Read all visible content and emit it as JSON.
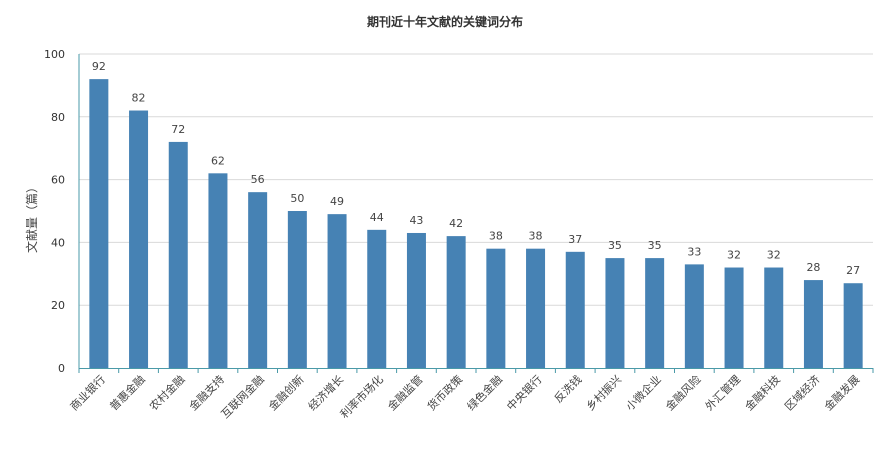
{
  "chart_data": {
    "type": "bar",
    "title": "期刊近十年文献的关键词分布",
    "xlabel": "",
    "ylabel": "文献量（篇）",
    "ylim": [
      0,
      100
    ],
    "yticks": [
      0,
      20,
      40,
      60,
      80,
      100
    ],
    "grid": true,
    "color": "#4682b4",
    "categories": [
      "商业银行",
      "普惠金融",
      "农村金融",
      "金融支持",
      "互联网金融",
      "金融创新",
      "经济增长",
      "利率市场化",
      "金融监管",
      "货币政策",
      "绿色金融",
      "中央银行",
      "反洗钱",
      "乡村振兴",
      "小微企业",
      "金融风险",
      "外汇管理",
      "金融科技",
      "区域经济",
      "金融发展"
    ],
    "values": [
      92,
      82,
      72,
      62,
      56,
      50,
      49,
      44,
      43,
      42,
      38,
      38,
      37,
      35,
      35,
      33,
      32,
      32,
      28,
      27
    ]
  }
}
